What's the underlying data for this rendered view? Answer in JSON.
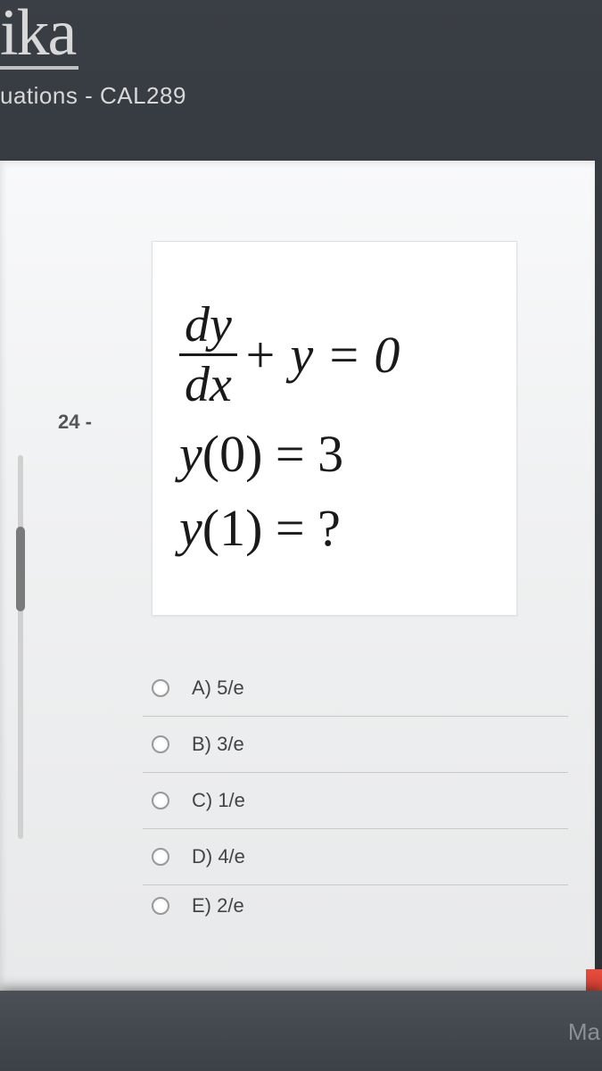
{
  "header": {
    "logo": "ika",
    "subtitle": "uations - CAL289"
  },
  "question": {
    "number": "24 -",
    "equation": {
      "frac_num": "dy",
      "frac_den": "dx",
      "rest1": " + y = 0",
      "line2_left": "y",
      "line2_paren": "(0) = 3",
      "line3_left": "y",
      "line3_paren": "(1) = ?"
    }
  },
  "answers": [
    {
      "label": "A) 5/e"
    },
    {
      "label": "B) 3/e"
    },
    {
      "label": "C) 1/e"
    },
    {
      "label": "D) 4/e"
    },
    {
      "label": "E)  2/e"
    }
  ],
  "bottom": {
    "ma": "Ma"
  },
  "colors": {
    "bg_dark": "#343a40",
    "panel": "#f0f1f2",
    "text_light": "#d8d8d8",
    "red_tab": "#e74c3c"
  }
}
